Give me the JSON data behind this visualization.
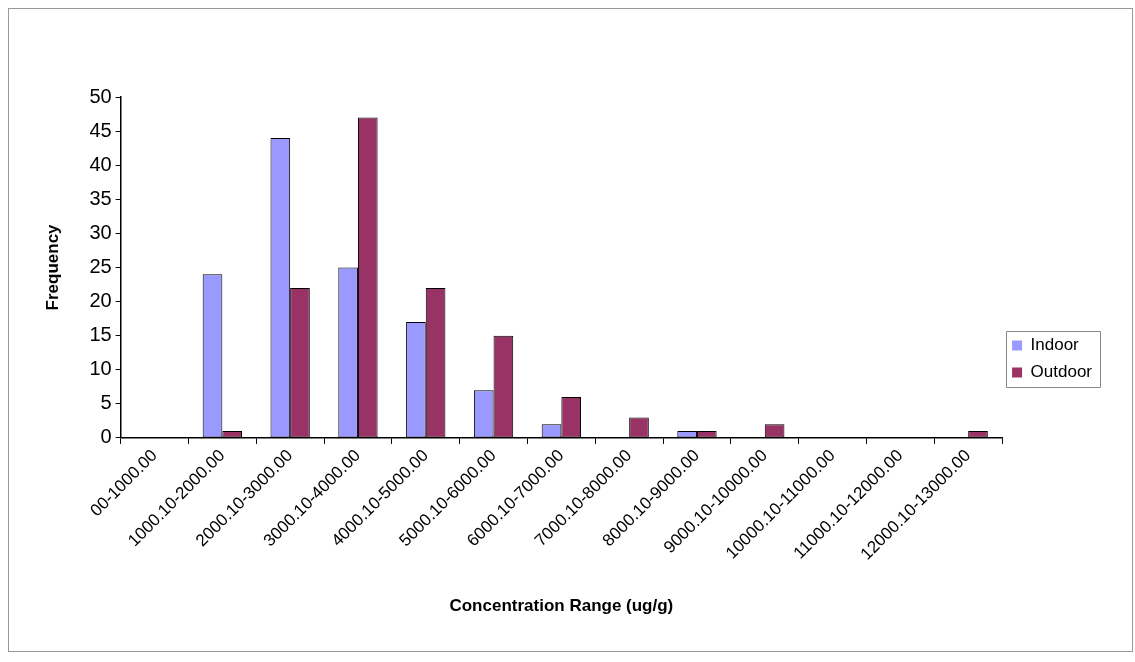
{
  "chart_data": {
    "type": "bar",
    "xlabel": "Concentration Range (ug/g)",
    "ylabel": "Frequency",
    "categories": [
      "00-1000.00",
      "1000.10-2000.00",
      "2000.10-3000.00",
      "3000.10-4000.00",
      "4000.10-5000.00",
      "5000.10-6000.00",
      "6000.10-7000.00",
      "7000.10-8000.00",
      "8000.10-9000.00",
      "9000.10-10000.00",
      "10000.10-11000.00",
      "11000.10-12000.00",
      "12000.10-13000.00"
    ],
    "series": [
      {
        "name": "Indoor",
        "color": "#9999ff",
        "values": [
          0,
          24,
          44,
          25,
          17,
          7,
          2,
          0,
          1,
          0,
          0,
          0,
          0
        ]
      },
      {
        "name": "Outdoor",
        "color": "#993366",
        "values": [
          0,
          1,
          22,
          47,
          22,
          15,
          6,
          3,
          1,
          2,
          0,
          0,
          1
        ]
      }
    ],
    "ylim": [
      0,
      50
    ],
    "yticks": [
      0,
      5,
      10,
      15,
      20,
      25,
      30,
      35,
      40,
      45,
      50
    ],
    "grid": false,
    "legend": "right"
  }
}
